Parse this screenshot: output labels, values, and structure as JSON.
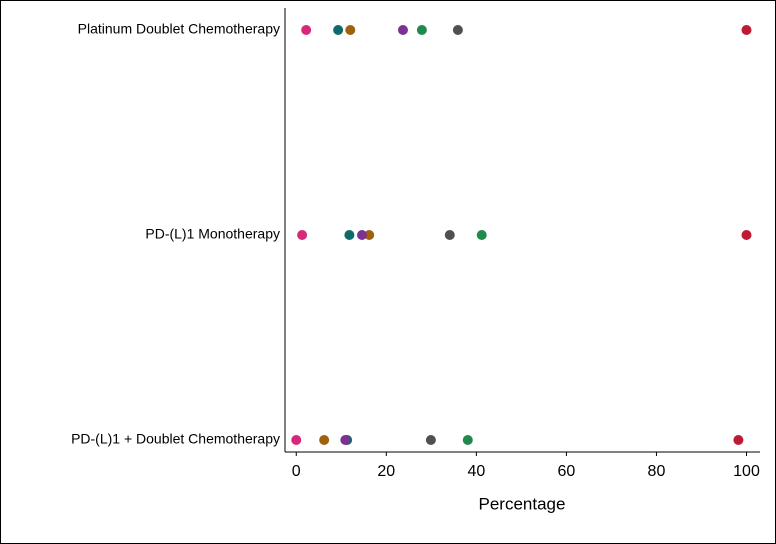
{
  "chart_data": {
    "type": "dot",
    "xlabel": "Percentage",
    "categories": [
      "Platinum Doublet Chemotherapy",
      "PD-(L)1 Monotherapy",
      "PD-(L)1 + Doublet Chemotherapy"
    ],
    "series": [
      {
        "color": "#d6297a",
        "values": [
          2.2,
          1.3,
          0
        ]
      },
      {
        "color": "#11696b",
        "values": [
          9.3,
          11.8,
          11.3
        ]
      },
      {
        "color": "#a0610f",
        "values": [
          12.0,
          16.2,
          6.2
        ]
      },
      {
        "color": "#7b3294",
        "values": [
          23.7,
          14.6,
          10.9
        ]
      },
      {
        "color": "#1f8a4c",
        "values": [
          27.9,
          41.2,
          38.1
        ]
      },
      {
        "color": "#505050",
        "values": [
          35.9,
          34.1,
          29.9
        ]
      },
      {
        "color": "#be1a33",
        "values": [
          100,
          100,
          98.2
        ]
      }
    ],
    "xlim": [
      -2.5,
      103
    ],
    "xticks": [
      0,
      20,
      40,
      60,
      80,
      100
    ]
  }
}
